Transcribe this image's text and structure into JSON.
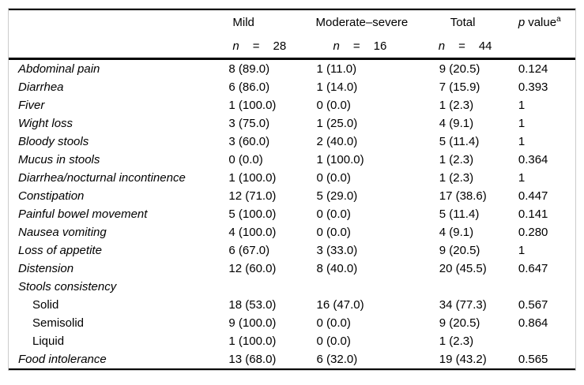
{
  "table": {
    "colors": {
      "rule": "#000000",
      "box_border": "#cccccc",
      "text": "#000000",
      "background": "#ffffff"
    },
    "header": {
      "col_label": "",
      "col_mild": "Mild",
      "col_moderate": "Moderate–severe",
      "col_total": "Total",
      "p_italic": "p",
      "p_rest": "value",
      "p_sup": "a"
    },
    "subheader": {
      "mild": {
        "n": "n",
        "eq": "=",
        "count": "28"
      },
      "moderate": {
        "n": "n",
        "eq": "=",
        "count": "16"
      },
      "total": {
        "n": "n",
        "eq": "=",
        "count": "44"
      }
    },
    "rows": [
      {
        "label": "Abdominal pain",
        "italic": true,
        "indent": false,
        "mild": "8 (89.0)",
        "moderate": "1 (11.0)",
        "total": "9 (20.5)",
        "p": "0.124"
      },
      {
        "label": "Diarrhea",
        "italic": true,
        "indent": false,
        "mild": "6 (86.0)",
        "moderate": "1 (14.0)",
        "total": "7 (15.9)",
        "p": "0.393"
      },
      {
        "label": "Fiver",
        "italic": true,
        "indent": false,
        "mild": "1 (100.0)",
        "moderate": "0 (0.0)",
        "total": "1 (2.3)",
        "p": "1"
      },
      {
        "label": "Wight loss",
        "italic": true,
        "indent": false,
        "mild": "3 (75.0)",
        "moderate": "1 (25.0)",
        "total": "4 (9.1)",
        "p": "1"
      },
      {
        "label": "Bloody stools",
        "italic": true,
        "indent": false,
        "mild": "3 (60.0)",
        "moderate": "2 (40.0)",
        "total": "5 (11.4)",
        "p": "1"
      },
      {
        "label": "Mucus in stools",
        "italic": true,
        "indent": false,
        "mild": "0 (0.0)",
        "moderate": "1 (100.0)",
        "total": "1 (2.3)",
        "p": "0.364"
      },
      {
        "label": "Diarrhea/nocturnal incontinence",
        "italic": true,
        "indent": false,
        "mild": "1 (100.0)",
        "moderate": "0 (0.0)",
        "total": "1 (2.3)",
        "p": "1"
      },
      {
        "label": "Constipation",
        "italic": true,
        "indent": false,
        "mild": "12 (71.0)",
        "moderate": "5 (29.0)",
        "total": "17 (38.6)",
        "p": "0.447"
      },
      {
        "label": "Painful bowel movement",
        "italic": true,
        "indent": false,
        "mild": "5 (100.0)",
        "moderate": "0 (0.0)",
        "total": "5 (11.4)",
        "p": "0.141"
      },
      {
        "label": "Nausea vomiting",
        "italic": true,
        "indent": false,
        "mild": "4 (100.0)",
        "moderate": "0 (0.0)",
        "total": "4 (9.1)",
        "p": "0.280"
      },
      {
        "label": "Loss of appetite",
        "italic": true,
        "indent": false,
        "mild": "6 (67.0)",
        "moderate": "3 (33.0)",
        "total": "9 (20.5)",
        "p": "1"
      },
      {
        "label": "Distension",
        "italic": true,
        "indent": false,
        "mild": "12 (60.0)",
        "moderate": "8 (40.0)",
        "total": "20 (45.5)",
        "p": "0.647"
      },
      {
        "label": "Stools consistency",
        "italic": true,
        "indent": false,
        "mild": "",
        "moderate": "",
        "total": "",
        "p": ""
      },
      {
        "label": "Solid",
        "italic": false,
        "indent": true,
        "mild": "18 (53.0)",
        "moderate": "16 (47.0)",
        "total": "34 (77.3)",
        "p": "0.567"
      },
      {
        "label": "Semisolid",
        "italic": false,
        "indent": true,
        "mild": "9 (100.0)",
        "moderate": "0 (0.0)",
        "total": "9 (20.5)",
        "p": "0.864"
      },
      {
        "label": "Liquid",
        "italic": false,
        "indent": true,
        "mild": "1 (100.0)",
        "moderate": "0 (0.0)",
        "total": "1 (2.3)",
        "p": ""
      },
      {
        "label": "Food intolerance",
        "italic": true,
        "indent": false,
        "mild": "13 (68.0)",
        "moderate": "6 (32.0)",
        "total": "19 (43.2)",
        "p": "0.565"
      }
    ]
  }
}
